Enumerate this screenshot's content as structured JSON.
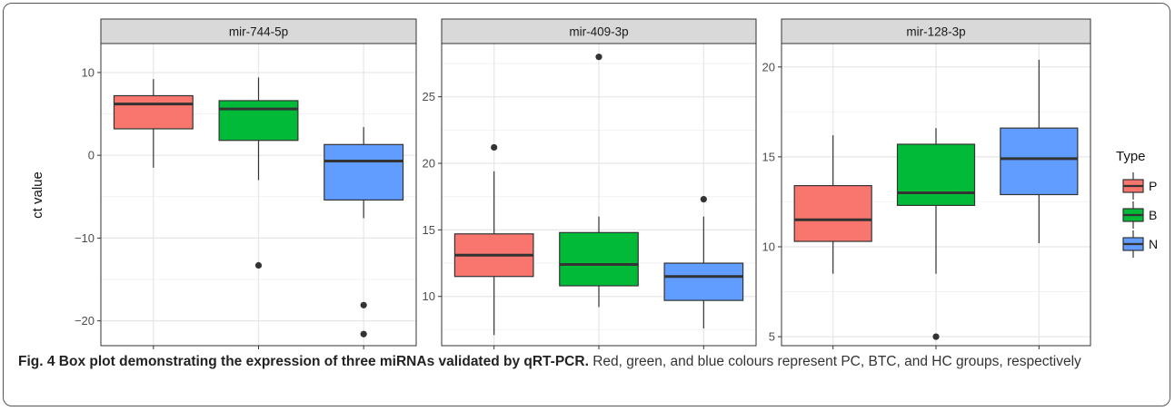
{
  "chart_data": {
    "type": "boxplot",
    "ylabel": "ct value",
    "legend": {
      "title": "Type",
      "position": "right",
      "entries": [
        {
          "label": "P",
          "color": "#F8766D"
        },
        {
          "label": "B",
          "color": "#00BA38"
        },
        {
          "label": "N",
          "color": "#619CFF"
        }
      ]
    },
    "categories": [
      "P",
      "B",
      "N"
    ],
    "grid": true,
    "panels": [
      {
        "title": "mir-744-5p",
        "ylim": [
          -23,
          13.5
        ],
        "yticks": [
          10,
          0,
          -10,
          -20
        ],
        "boxes": [
          {
            "group": "P",
            "whisker_low": -1.5,
            "q1": 3.2,
            "median": 6.2,
            "q3": 7.2,
            "whisker_high": 9.2,
            "outliers": []
          },
          {
            "group": "B",
            "whisker_low": -3.0,
            "q1": 1.8,
            "median": 5.6,
            "q3": 6.6,
            "whisker_high": 9.4,
            "outliers": [
              -13.3
            ]
          },
          {
            "group": "N",
            "whisker_low": -7.6,
            "q1": -5.4,
            "median": -0.7,
            "q3": 1.3,
            "whisker_high": 3.4,
            "outliers": [
              -18.1,
              -21.6
            ]
          }
        ]
      },
      {
        "title": "mir-409-3p",
        "ylim": [
          6.3,
          29.0
        ],
        "yticks": [
          25,
          20,
          15,
          10
        ],
        "boxes": [
          {
            "group": "P",
            "whisker_low": 7.1,
            "q1": 11.5,
            "median": 13.1,
            "q3": 14.7,
            "whisker_high": 19.4,
            "outliers": [
              21.2
            ]
          },
          {
            "group": "B",
            "whisker_low": 9.2,
            "q1": 10.8,
            "median": 12.4,
            "q3": 14.8,
            "whisker_high": 16.0,
            "outliers": [
              28.0
            ]
          },
          {
            "group": "N",
            "whisker_low": 7.6,
            "q1": 9.7,
            "median": 11.5,
            "q3": 12.5,
            "whisker_high": 16.0,
            "outliers": [
              17.3
            ]
          }
        ]
      },
      {
        "title": "mir-128-3p",
        "ylim": [
          4.5,
          21.3
        ],
        "yticks": [
          20,
          15,
          10,
          5
        ],
        "boxes": [
          {
            "group": "P",
            "whisker_low": 8.5,
            "q1": 10.3,
            "median": 11.5,
            "q3": 13.4,
            "whisker_high": 16.2,
            "outliers": []
          },
          {
            "group": "B",
            "whisker_low": 8.5,
            "q1": 12.3,
            "median": 13.0,
            "q3": 15.7,
            "whisker_high": 16.6,
            "outliers": [
              5.0
            ]
          },
          {
            "group": "N",
            "whisker_low": 10.2,
            "q1": 12.9,
            "median": 14.9,
            "q3": 16.6,
            "whisker_high": 20.4,
            "outliers": []
          }
        ]
      }
    ]
  },
  "caption": {
    "label": "Fig. 4",
    "title": "Box plot demonstrating the expression of three miRNAs validated by qRT-PCR",
    "title_end": ".",
    "body": "Red, green, and blue colours represent PC, BTC, and HC groups, respectively"
  }
}
